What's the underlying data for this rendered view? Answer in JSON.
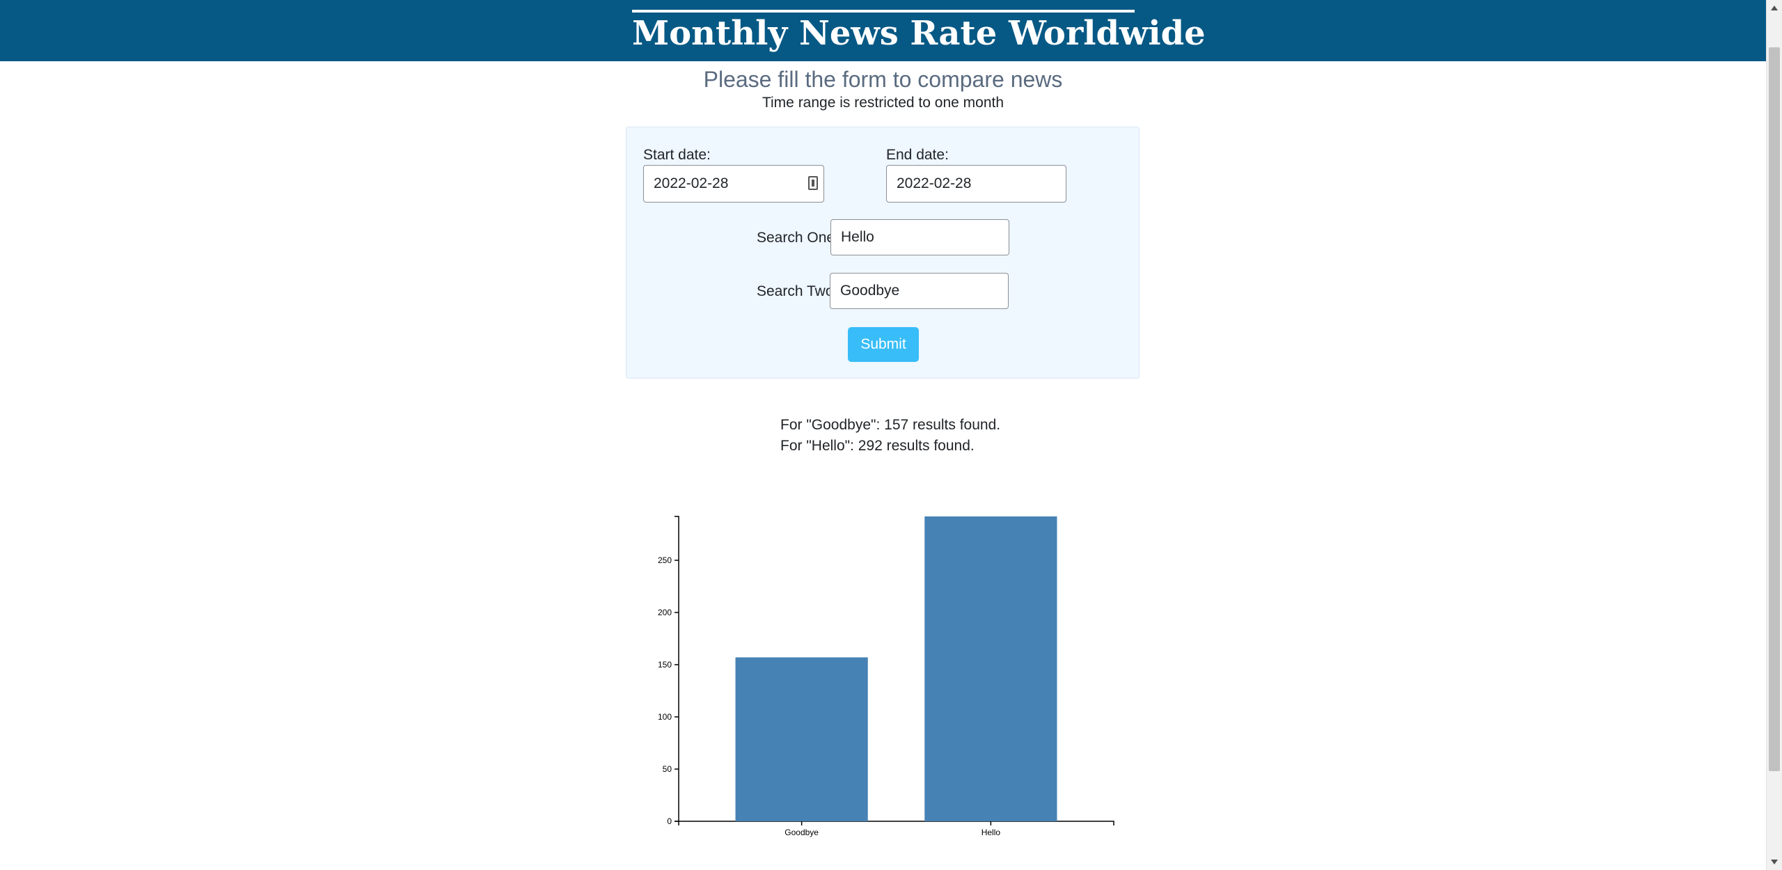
{
  "header": {
    "title": "Monthly News Rate Worldwide"
  },
  "intro": {
    "subtitle": "Please fill the form to compare news",
    "note": "Time range is restricted to one month"
  },
  "form": {
    "start_label": "Start date:",
    "start_value": "2022-02-28",
    "end_label": "End date:",
    "end_value": "2022-02-28",
    "search_one_label": "Search One:",
    "search_one_value": "Hello",
    "search_two_label": "Search Two:",
    "search_two_value": "Goodbye",
    "submit_label": "Submit"
  },
  "results": {
    "line1": "For \"Goodbye\": 157 results found.",
    "line2": "For \"Hello\": 292 results found."
  },
  "chart_data": {
    "type": "bar",
    "categories": [
      "Goodbye",
      "Hello"
    ],
    "values": [
      157,
      292
    ],
    "ylim": [
      0,
      292
    ],
    "yticks": [
      0,
      50,
      100,
      150,
      200,
      250
    ],
    "bar_color": "#4682b4",
    "grid": false,
    "title": "",
    "xlabel": "",
    "ylabel": ""
  },
  "colors": {
    "header_bg": "#075985",
    "button_bg": "#38bdf8",
    "panel_bg": "#eff7ff"
  }
}
